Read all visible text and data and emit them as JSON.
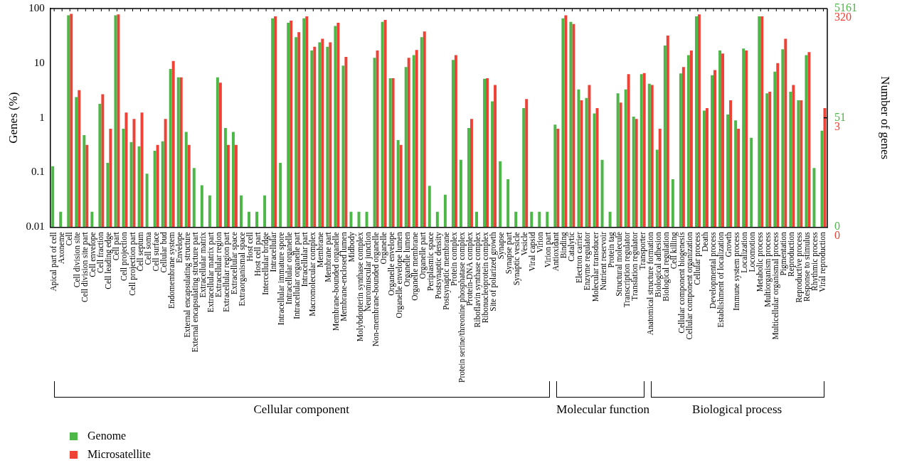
{
  "chart_data": {
    "type": "bar",
    "ylabel": "Genes (%)",
    "y2label": "Number of genes",
    "categories": [
      "Apical part of cell",
      "Axoneme",
      "Cell",
      "Cell division site",
      "Cell division site part",
      "Cell envelope",
      "Cell fraction",
      "Cell leading edge",
      "Cell part",
      "Cell projection",
      "Cell projection part",
      "Cell septum",
      "Cell soma",
      "Cell surface",
      "Cellular bud",
      "Endomembrane system",
      "Envelope",
      "External encapsulating structure",
      "External encapsulating structure part",
      "Extracellular matrix",
      "Extracellular matrix part",
      "Extracellular region",
      "Extracellular region part",
      "Extracellular space",
      "Extraorganismal space",
      "Host cell",
      "Host cell part",
      "Intercellular bridge",
      "Intracellular",
      "Intracellular immature spore",
      "Intracellular organelle",
      "Intracellular organelle part",
      "Intracellular part",
      "Macromolecular complex",
      "Membrane",
      "Membrane part",
      "Membrane-bounded organelle",
      "Membrane-enclosed lumen",
      "Midbody",
      "Molybdopterin synthase complex",
      "Neuromuscular junction",
      "Non-membrane-bounded organelle",
      "Organelle",
      "Organelle envelope",
      "Organelle envelope lumen",
      "Organelle lumen",
      "Organelle membrane",
      "Organelle part",
      "Periplasmic space",
      "Postsynaptic density",
      "Postsynaptic membrane",
      "Protein complex",
      "Protein serine/threonine phosphatase complex",
      "Protein-DNA complex",
      "Riboflavin synthase complex",
      "Ribonucleoprotein complex",
      "Site of polarized growth",
      "Synapse",
      "Synapse part",
      "Synaptic vesicle",
      "Vesicle",
      "Viral capsid",
      "Virion",
      "Virion part",
      "Antioxidant",
      "Binding",
      "Catalytic",
      "Electron carrier",
      "Enzyme regulator",
      "Molecular transducer",
      "Nutrient reservoir",
      "Protein tag",
      "Structural molecule",
      "Transcription regulator",
      "Translation regulator",
      "Transporter",
      "Anatomical structure formation",
      "Biological adhesion",
      "Biological regulation",
      "Cell killing",
      "Cellular component biogenesis",
      "Cellular component organization",
      "Cellular process",
      "Death",
      "Developmental process",
      "Establishment of localization",
      "Growth",
      "Immune system process",
      "Localization",
      "Locomotion",
      "Metabolic process",
      "Multiorganism process",
      "Multicellular organismal process",
      "Pigmentation",
      "Reproduction",
      "Reproductive process",
      "Response to stimulus",
      "Rhythmic process",
      "Viral reproduction"
    ],
    "series": [
      {
        "name": "Genome",
        "color": "#4db848",
        "values": [
          0.13,
          0.019,
          75,
          2.4,
          0.48,
          0.019,
          1.8,
          0.15,
          75,
          0.63,
          0.36,
          0.3,
          0.095,
          0.25,
          0.37,
          7.8,
          5.5,
          0.55,
          0.12,
          0.058,
          0.038,
          5.5,
          0.65,
          0.55,
          0.038,
          0.019,
          0.019,
          0.038,
          66,
          0.15,
          55,
          30,
          66,
          17,
          24,
          20,
          48,
          9,
          0.019,
          0.019,
          0.019,
          12.5,
          57,
          5.3,
          0.39,
          8.5,
          14,
          30,
          0.057,
          0.019,
          0.039,
          11.5,
          0.17,
          0.65,
          0.019,
          5.2,
          2,
          0.16,
          0.075,
          0.019,
          1.5,
          0.019,
          0.019,
          0.019,
          0.75,
          66,
          57,
          3.3,
          2.3,
          1.2,
          0.17,
          0.019,
          2.8,
          3.3,
          1.05,
          6.3,
          4.2,
          0.26,
          21,
          0.075,
          6.5,
          14,
          72,
          1.35,
          6,
          17,
          1.15,
          0.9,
          18.5,
          0.43,
          72,
          2.8,
          7,
          18,
          3,
          2.1,
          14,
          0.12,
          0.58
        ]
      },
      {
        "name": "Microsatellite",
        "color": "#ef4136",
        "values": [
          null,
          null,
          80,
          3.2,
          0.32,
          null,
          2.7,
          0.63,
          78,
          1.25,
          0.95,
          1.25,
          null,
          0.32,
          0.95,
          11,
          5.5,
          0.32,
          null,
          null,
          null,
          4.4,
          0.32,
          0.32,
          null,
          null,
          null,
          null,
          72,
          null,
          60,
          37,
          72,
          20,
          28,
          24,
          55,
          13,
          null,
          null,
          null,
          17,
          62,
          5.3,
          0.32,
          12.5,
          17.5,
          38,
          null,
          null,
          null,
          14,
          null,
          0.95,
          null,
          5.3,
          4,
          null,
          null,
          null,
          2.2,
          null,
          null,
          null,
          0.63,
          75,
          52,
          2.1,
          4,
          1.5,
          null,
          null,
          1.9,
          6.3,
          0.95,
          6.6,
          4,
          0.63,
          32,
          null,
          8.5,
          17,
          78,
          1.5,
          7.5,
          15,
          2.1,
          0.63,
          17,
          null,
          72,
          3,
          10,
          28,
          4,
          2.1,
          16,
          null,
          1.5
        ]
      }
    ],
    "log": "y",
    "ylim": [
      0.01,
      100
    ],
    "yticks": [
      0.01,
      0.1,
      1,
      10,
      100
    ],
    "annotations": [
      "Cellular component",
      "Molecular function",
      "Biological process",
      "5161",
      "51",
      "0",
      "320",
      "3",
      "0"
    ],
    "legend": "bottom left",
    "grid": false
  }
}
